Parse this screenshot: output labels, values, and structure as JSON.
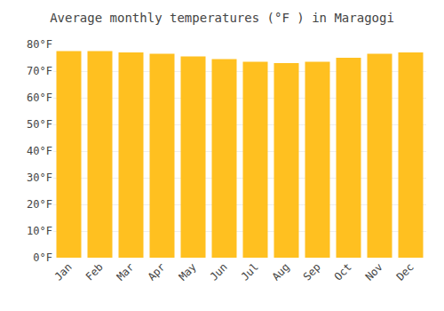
{
  "chart_data": {
    "type": "bar",
    "title": "Average monthly temperatures (°F ) in Maragogi",
    "categories": [
      "Jan",
      "Feb",
      "Mar",
      "Apr",
      "May",
      "Jun",
      "Jul",
      "Aug",
      "Sep",
      "Oct",
      "Nov",
      "Dec"
    ],
    "values": [
      77.5,
      77.5,
      77.0,
      76.5,
      75.5,
      74.5,
      73.5,
      73.0,
      73.5,
      75.0,
      76.5,
      77.0
    ],
    "color": "#FFC020",
    "ylim": [
      0,
      80
    ],
    "yticks": [
      {
        "value": 0,
        "label": "0°F"
      },
      {
        "value": 10,
        "label": "10°F"
      },
      {
        "value": 20,
        "label": "20°F"
      },
      {
        "value": 30,
        "label": "30°F"
      },
      {
        "value": 40,
        "label": "40°F"
      },
      {
        "value": 50,
        "label": "50°F"
      },
      {
        "value": 60,
        "label": "60°F"
      },
      {
        "value": 70,
        "label": "70°F"
      },
      {
        "value": 80,
        "label": "80°F"
      }
    ],
    "grid": true
  }
}
